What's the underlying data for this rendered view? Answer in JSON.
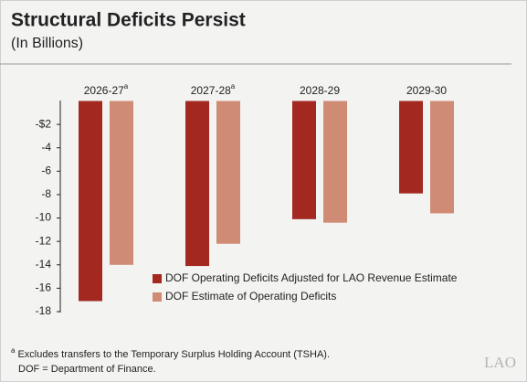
{
  "chart_data": {
    "type": "bar",
    "title": "Structural Deficits Persist",
    "subtitle": "(In Billions)",
    "categories": [
      "2026-27",
      "2027-28",
      "2028-29",
      "2029-30"
    ],
    "category_notes": [
      "a",
      "a",
      null,
      null
    ],
    "series": [
      {
        "name": "DOF Operating Deficits Adjusted for LAO Revenue Estimate",
        "color": "#a3281f",
        "values": [
          -17.1,
          -14.1,
          -10.1,
          -7.9
        ]
      },
      {
        "name": "DOF Estimate of Operating Deficits",
        "color": "#d08b74",
        "values": [
          -14.0,
          -12.2,
          -10.4,
          -9.6
        ]
      }
    ],
    "ylim": [
      0,
      -18
    ],
    "yticks": [
      {
        "value": -2,
        "label": "-$2"
      },
      -4,
      -6,
      -8,
      -10,
      -12,
      -14,
      -16,
      -18
    ],
    "grid": false,
    "legend": "bottom-right",
    "footnotes": [
      {
        "marker": "a",
        "text": "Excludes transfers to the Temporary Surplus Holding Account (TSHA)."
      }
    ],
    "source_note": "DOF = Department of Finance.",
    "logo": "LAO"
  }
}
